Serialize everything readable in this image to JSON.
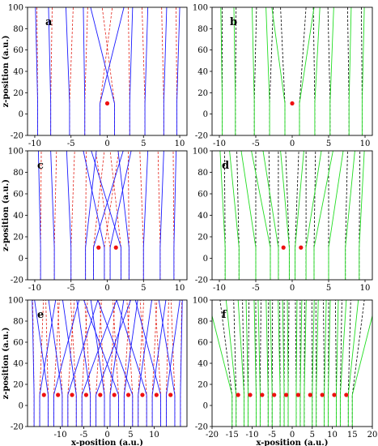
{
  "chart_data": [
    {
      "type": "line",
      "letter": "a",
      "xlim": [
        -11,
        11
      ],
      "ylim": [
        -20,
        100
      ],
      "xticks": [
        -10,
        -5,
        0,
        5,
        10
      ],
      "yticks": [
        -20,
        0,
        20,
        40,
        60,
        80,
        100
      ],
      "ylabel": "z-position (a.u.)",
      "xlabel": "",
      "style": "bluered",
      "slits": [
        0
      ],
      "screen_z": 10,
      "ray_bases": [
        -9.6,
        -7.8,
        -5.2,
        -3.1,
        -1.0,
        1.0,
        3.1,
        5.2,
        7.8,
        9.6
      ],
      "ray_tops": [
        -9.9,
        -8.1,
        -5.7,
        -3.3,
        2.3,
        -2.3,
        3.5,
        5.6,
        8.2,
        10.0
      ],
      "dash_tops": [
        -9.7,
        -7.6,
        -4.7,
        -2.7,
        0.7,
        -0.7,
        2.9,
        4.8,
        7.5,
        9.5
      ],
      "dots": [
        [
          0,
          10
        ]
      ]
    },
    {
      "type": "line",
      "letter": "b",
      "xlim": [
        -11,
        11
      ],
      "ylim": [
        -20,
        100
      ],
      "xticks": [
        -10,
        -5,
        0,
        5,
        10
      ],
      "yticks": [
        -20,
        0,
        20,
        40,
        60,
        80,
        100
      ],
      "ylabel": "",
      "xlabel": "",
      "style": "greenblack",
      "slits": [
        0
      ],
      "screen_z": 10,
      "ray_bases": [
        -9.6,
        -7.8,
        -5.2,
        -3.1,
        -1.0,
        1.0,
        3.1,
        5.2,
        7.8,
        9.6
      ],
      "ray_tops": [
        -9.8,
        -8.0,
        -5.5,
        -3.6,
        -2.8,
        3.0,
        3.8,
        5.7,
        8.1,
        9.9
      ],
      "dash_tops": [
        -9.6,
        -7.7,
        -4.9,
        -2.6,
        -1.6,
        1.9,
        2.9,
        4.9,
        7.6,
        9.5
      ],
      "dots": [
        [
          0,
          10
        ]
      ]
    },
    {
      "type": "line",
      "letter": "c",
      "xlim": [
        -11,
        11
      ],
      "ylim": [
        -20,
        100
      ],
      "xticks": [
        -10,
        -5,
        0,
        5,
        10
      ],
      "yticks": [
        -20,
        0,
        20,
        40,
        60,
        80,
        100
      ],
      "ylabel": "z-position (a.u.)",
      "xlabel": "",
      "style": "bluered",
      "slits": [
        -1.2,
        1.2
      ],
      "screen_z": 10,
      "ray_bases": [
        -9.2,
        -7.3,
        -5.0,
        -3.0,
        -1.9,
        -0.4,
        0.4,
        1.9,
        3.0,
        5.0,
        7.3,
        9.2
      ],
      "ray_tops": [
        -9.5,
        -7.8,
        -5.6,
        -1.5,
        2.2,
        -3.3,
        3.3,
        -2.2,
        1.5,
        5.6,
        7.8,
        9.5
      ],
      "dash_tops": [
        -9.1,
        -7.0,
        -4.5,
        -2.9,
        -0.4,
        1.6,
        -1.6,
        0.4,
        2.9,
        4.5,
        7.0,
        9.1
      ],
      "dots": [
        [
          -1.2,
          10
        ],
        [
          1.2,
          10
        ]
      ]
    },
    {
      "type": "line",
      "letter": "d",
      "xlim": [
        -11,
        11
      ],
      "ylim": [
        -20,
        100
      ],
      "xticks": [
        -10,
        -5,
        0,
        5,
        10
      ],
      "yticks": [
        -20,
        0,
        20,
        40,
        60,
        80,
        100
      ],
      "ylabel": "",
      "xlabel": "",
      "style": "greenblack",
      "slits": [
        -1.2,
        1.2
      ],
      "screen_z": 10,
      "ray_bases": [
        -9.2,
        -7.3,
        -5.0,
        -3.0,
        -1.9,
        -0.4,
        0.4,
        1.9,
        3.0,
        5.0,
        7.3,
        9.2
      ],
      "ray_tops": [
        -9.9,
        -8.6,
        -7.0,
        -5.6,
        -4.0,
        -1.6,
        1.6,
        4.0,
        5.6,
        7.0,
        8.6,
        9.9
      ],
      "dash_tops": [
        -9.3,
        -7.6,
        -5.0,
        -3.2,
        -1.9,
        -0.9,
        0.9,
        1.9,
        3.2,
        5.0,
        7.6,
        9.3
      ],
      "dots": [
        [
          -1.2,
          10
        ],
        [
          1.2,
          10
        ]
      ]
    },
    {
      "type": "line",
      "letter": "e",
      "xlim": [
        -17,
        17
      ],
      "ylim": [
        -20,
        100
      ],
      "xticks": [
        -10,
        -5,
        0,
        5,
        10
      ],
      "yticks": [
        -20,
        0,
        20,
        40,
        60,
        80,
        100
      ],
      "ylabel": "z-position (a.u.)",
      "xlabel": "x-position (a.u.)",
      "style": "bluered",
      "slits": [
        -13.5,
        -10.5,
        -7.5,
        -4.5,
        -1.5,
        1.5,
        4.5,
        7.5,
        10.5,
        13.5
      ],
      "screen_z": 10,
      "ray_bases": [
        -15.6,
        -14.4,
        -12.6,
        -11.4,
        -9.6,
        -8.4,
        -6.6,
        -5.4,
        -3.6,
        -2.4,
        -0.6,
        0.6,
        2.4,
        3.6,
        5.4,
        6.6,
        8.4,
        9.6,
        11.4,
        12.6,
        14.4,
        15.6
      ],
      "ray_tops": [
        -16.0,
        -11.0,
        -15.5,
        -6.0,
        -12.5,
        -2.0,
        -9.5,
        2.0,
        -6.5,
        5.0,
        -3.5,
        3.5,
        -5.0,
        6.5,
        -2.0,
        9.5,
        2.0,
        12.5,
        6.0,
        15.5,
        11.0,
        16.0
      ],
      "dash_tops": [
        -15.9,
        -13.6,
        -13.1,
        -10.2,
        -10.6,
        -7.0,
        -7.8,
        -4.2,
        -4.8,
        -1.2,
        -1.6,
        1.6,
        1.2,
        4.8,
        4.2,
        7.8,
        7.0,
        10.6,
        10.2,
        13.1,
        13.6,
        15.9
      ],
      "dots": [
        [
          -13.5,
          10
        ],
        [
          -10.5,
          10
        ],
        [
          -7.5,
          10
        ],
        [
          -4.5,
          10
        ],
        [
          -1.5,
          10
        ],
        [
          1.5,
          10
        ],
        [
          4.5,
          10
        ],
        [
          7.5,
          10
        ],
        [
          10.5,
          10
        ],
        [
          13.5,
          10
        ]
      ]
    },
    {
      "type": "line",
      "letter": "f",
      "xlim": [
        -20,
        20
      ],
      "ylim": [
        -20,
        100
      ],
      "xticks": [
        -20,
        -15,
        -10,
        -5,
        0,
        5,
        10,
        15,
        20
      ],
      "yticks": [
        -20,
        0,
        20,
        40,
        60,
        80,
        100
      ],
      "ylabel": "",
      "xlabel": "x-position (a.u.)",
      "style": "greenblack",
      "slits": [
        -13.5,
        -10.5,
        -7.5,
        -4.5,
        -1.5,
        1.5,
        4.5,
        7.5,
        10.5,
        13.5
      ],
      "screen_z": 10,
      "ray_bases": [
        -15.0,
        -14.0,
        -12.0,
        -11.0,
        -9.0,
        -8.0,
        -6.0,
        -5.0,
        -3.0,
        -2.0,
        -1.0,
        1.0,
        2.0,
        3.0,
        5.0,
        6.0,
        8.0,
        9.0,
        11.0,
        12.0,
        14.0,
        15.0
      ],
      "ray_tops": [
        -21.0,
        -16.5,
        -13.5,
        -11.5,
        -9.5,
        -8.5,
        -6.5,
        -5.5,
        -3.5,
        -2.4,
        -1.2,
        1.2,
        2.4,
        3.5,
        5.5,
        6.5,
        8.5,
        9.5,
        11.5,
        13.5,
        16.5,
        21.0
      ],
      "dash_tops": [
        -18.0,
        -14.6,
        -12.4,
        -10.8,
        -9.1,
        -7.8,
        -5.9,
        -4.9,
        -3.1,
        -2.0,
        -0.8,
        0.8,
        2.0,
        3.1,
        4.9,
        5.9,
        7.8,
        9.1,
        10.8,
        12.4,
        14.6,
        18.0
      ],
      "dots": [
        [
          -13.5,
          10
        ],
        [
          -10.5,
          10
        ],
        [
          -7.5,
          10
        ],
        [
          -4.5,
          10
        ],
        [
          -1.5,
          10
        ],
        [
          1.5,
          10
        ],
        [
          4.5,
          10
        ],
        [
          7.5,
          10
        ],
        [
          10.5,
          10
        ],
        [
          13.5,
          10
        ]
      ]
    }
  ],
  "colors": {
    "solid_blue": "#1a1aff",
    "dashed_red": "#e3241b",
    "solid_green": "#22dd22",
    "dashed_black": "#000000",
    "dot": "#ee1111"
  }
}
